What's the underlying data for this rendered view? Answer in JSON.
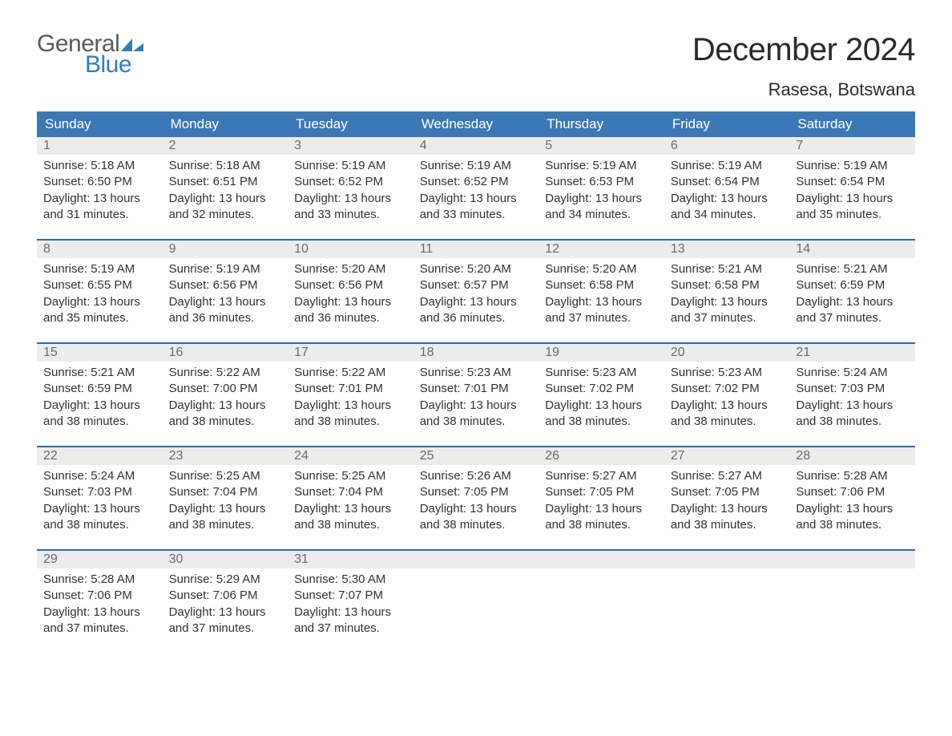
{
  "logo": {
    "word1": "General",
    "word2": "Blue"
  },
  "title": "December 2024",
  "location": "Rasesa, Botswana",
  "colors": {
    "header_blue": "#3b78b5",
    "accent_line": "#2f6aa8",
    "logo_gray": "#5a5a5a",
    "logo_blue": "#2f7fbf",
    "day_number_bg": "#ececec",
    "day_number_color": "#6b6b6b",
    "text_color": "#333333",
    "background": "#ffffff"
  },
  "weekdays": [
    "Sunday",
    "Monday",
    "Tuesday",
    "Wednesday",
    "Thursday",
    "Friday",
    "Saturday"
  ],
  "labels": {
    "sunrise": "Sunrise:",
    "sunset": "Sunset:",
    "daylight": "Daylight:"
  },
  "weeks": [
    [
      {
        "day": 1,
        "sunrise": "5:18 AM",
        "sunset": "6:50 PM",
        "daylight": "13 hours and 31 minutes."
      },
      {
        "day": 2,
        "sunrise": "5:18 AM",
        "sunset": "6:51 PM",
        "daylight": "13 hours and 32 minutes."
      },
      {
        "day": 3,
        "sunrise": "5:19 AM",
        "sunset": "6:52 PM",
        "daylight": "13 hours and 33 minutes."
      },
      {
        "day": 4,
        "sunrise": "5:19 AM",
        "sunset": "6:52 PM",
        "daylight": "13 hours and 33 minutes."
      },
      {
        "day": 5,
        "sunrise": "5:19 AM",
        "sunset": "6:53 PM",
        "daylight": "13 hours and 34 minutes."
      },
      {
        "day": 6,
        "sunrise": "5:19 AM",
        "sunset": "6:54 PM",
        "daylight": "13 hours and 34 minutes."
      },
      {
        "day": 7,
        "sunrise": "5:19 AM",
        "sunset": "6:54 PM",
        "daylight": "13 hours and 35 minutes."
      }
    ],
    [
      {
        "day": 8,
        "sunrise": "5:19 AM",
        "sunset": "6:55 PM",
        "daylight": "13 hours and 35 minutes."
      },
      {
        "day": 9,
        "sunrise": "5:19 AM",
        "sunset": "6:56 PM",
        "daylight": "13 hours and 36 minutes."
      },
      {
        "day": 10,
        "sunrise": "5:20 AM",
        "sunset": "6:56 PM",
        "daylight": "13 hours and 36 minutes."
      },
      {
        "day": 11,
        "sunrise": "5:20 AM",
        "sunset": "6:57 PM",
        "daylight": "13 hours and 36 minutes."
      },
      {
        "day": 12,
        "sunrise": "5:20 AM",
        "sunset": "6:58 PM",
        "daylight": "13 hours and 37 minutes."
      },
      {
        "day": 13,
        "sunrise": "5:21 AM",
        "sunset": "6:58 PM",
        "daylight": "13 hours and 37 minutes."
      },
      {
        "day": 14,
        "sunrise": "5:21 AM",
        "sunset": "6:59 PM",
        "daylight": "13 hours and 37 minutes."
      }
    ],
    [
      {
        "day": 15,
        "sunrise": "5:21 AM",
        "sunset": "6:59 PM",
        "daylight": "13 hours and 38 minutes."
      },
      {
        "day": 16,
        "sunrise": "5:22 AM",
        "sunset": "7:00 PM",
        "daylight": "13 hours and 38 minutes."
      },
      {
        "day": 17,
        "sunrise": "5:22 AM",
        "sunset": "7:01 PM",
        "daylight": "13 hours and 38 minutes."
      },
      {
        "day": 18,
        "sunrise": "5:23 AM",
        "sunset": "7:01 PM",
        "daylight": "13 hours and 38 minutes."
      },
      {
        "day": 19,
        "sunrise": "5:23 AM",
        "sunset": "7:02 PM",
        "daylight": "13 hours and 38 minutes."
      },
      {
        "day": 20,
        "sunrise": "5:23 AM",
        "sunset": "7:02 PM",
        "daylight": "13 hours and 38 minutes."
      },
      {
        "day": 21,
        "sunrise": "5:24 AM",
        "sunset": "7:03 PM",
        "daylight": "13 hours and 38 minutes."
      }
    ],
    [
      {
        "day": 22,
        "sunrise": "5:24 AM",
        "sunset": "7:03 PM",
        "daylight": "13 hours and 38 minutes."
      },
      {
        "day": 23,
        "sunrise": "5:25 AM",
        "sunset": "7:04 PM",
        "daylight": "13 hours and 38 minutes."
      },
      {
        "day": 24,
        "sunrise": "5:25 AM",
        "sunset": "7:04 PM",
        "daylight": "13 hours and 38 minutes."
      },
      {
        "day": 25,
        "sunrise": "5:26 AM",
        "sunset": "7:05 PM",
        "daylight": "13 hours and 38 minutes."
      },
      {
        "day": 26,
        "sunrise": "5:27 AM",
        "sunset": "7:05 PM",
        "daylight": "13 hours and 38 minutes."
      },
      {
        "day": 27,
        "sunrise": "5:27 AM",
        "sunset": "7:05 PM",
        "daylight": "13 hours and 38 minutes."
      },
      {
        "day": 28,
        "sunrise": "5:28 AM",
        "sunset": "7:06 PM",
        "daylight": "13 hours and 38 minutes."
      }
    ],
    [
      {
        "day": 29,
        "sunrise": "5:28 AM",
        "sunset": "7:06 PM",
        "daylight": "13 hours and 37 minutes."
      },
      {
        "day": 30,
        "sunrise": "5:29 AM",
        "sunset": "7:06 PM",
        "daylight": "13 hours and 37 minutes."
      },
      {
        "day": 31,
        "sunrise": "5:30 AM",
        "sunset": "7:07 PM",
        "daylight": "13 hours and 37 minutes."
      },
      null,
      null,
      null,
      null
    ]
  ]
}
